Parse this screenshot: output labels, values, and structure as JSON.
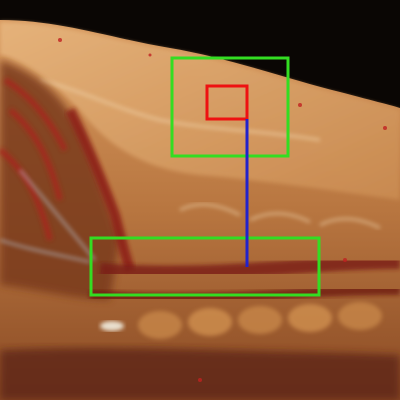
{
  "image": {
    "subject": "tissue-section-photo",
    "background_color": "#0a0604",
    "tissue_colors": {
      "tan": "#c8874a",
      "light_tan": "#e0b07a",
      "dark_red": "#7a1a14",
      "red_streak": "#a8281e",
      "bluish_white": "#b8c8d8"
    }
  },
  "overlays": {
    "top_box_color": "#33dd22",
    "bottom_box_color": "#33dd22",
    "small_box_color": "#ee1111",
    "connector_line_color": "#2222cc"
  }
}
